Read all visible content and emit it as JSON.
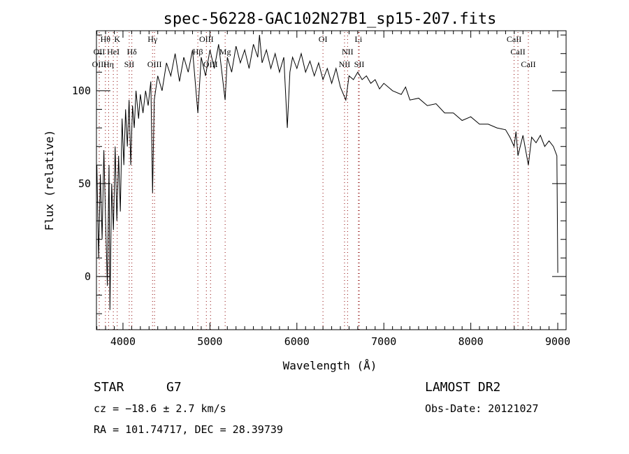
{
  "chart_data": {
    "type": "line",
    "title": "spec-56228-GAC102N27B1_sp15-207.fits",
    "xlabel": "Wavelength (Å)",
    "ylabel": "Flux (relative)",
    "xlim": [
      3695,
      9096
    ],
    "ylim": [
      -28.6,
      132.3
    ],
    "xticks": [
      4000,
      5000,
      6000,
      7000,
      8000,
      9000
    ],
    "yticks": [
      0,
      50,
      100
    ],
    "grid": false,
    "line_color": "#000000",
    "marker_line_color": "#8b0000",
    "lines": [
      {
        "label": "Hθ",
        "wave": 3798,
        "row": 0
      },
      {
        "label": "K",
        "wave": 3934,
        "row": 0
      },
      {
        "label": "Hγ",
        "wave": 4340,
        "row": 0
      },
      {
        "label": "OIII",
        "wave": 4959,
        "row": 0
      },
      {
        "label": "OI",
        "wave": 6300,
        "row": 0
      },
      {
        "label": "Li",
        "wave": 6708,
        "row": 0
      },
      {
        "label": "CaII",
        "wave": 8498,
        "row": 0
      },
      {
        "label": "OII",
        "wave": 3727,
        "row": 1
      },
      {
        "label": "HeI",
        "wave": 3889,
        "row": 1
      },
      {
        "label": "Hδ",
        "wave": 4102,
        "row": 1
      },
      {
        "label": "Hβ",
        "wave": 4861,
        "row": 1
      },
      {
        "label": "Mg",
        "wave": 5175,
        "row": 1
      },
      {
        "label": "NII",
        "wave": 6583,
        "row": 1
      },
      {
        "label": "CaII",
        "wave": 8542,
        "row": 1
      },
      {
        "label": "OIII",
        "wave": 3727,
        "row": 2
      },
      {
        "label": "Hη",
        "wave": 3835,
        "row": 2
      },
      {
        "label": "SII",
        "wave": 4072,
        "row": 2
      },
      {
        "label": "OIII",
        "wave": 4363,
        "row": 2
      },
      {
        "label": "OIII",
        "wave": 5007,
        "row": 2
      },
      {
        "label": "NII",
        "wave": 6548,
        "row": 2
      },
      {
        "label": "SII",
        "wave": 6717,
        "row": 2
      },
      {
        "label": "CaII",
        "wave": 8662,
        "row": 2
      }
    ],
    "x": [
      3700,
      3720,
      3740,
      3760,
      3780,
      3800,
      3820,
      3840,
      3850,
      3870,
      3890,
      3910,
      3930,
      3950,
      3970,
      3990,
      4010,
      4030,
      4050,
      4070,
      4090,
      4110,
      4130,
      4150,
      4180,
      4200,
      4230,
      4260,
      4290,
      4320,
      4340,
      4360,
      4400,
      4450,
      4500,
      4550,
      4600,
      4650,
      4700,
      4750,
      4800,
      4861,
      4900,
      4950,
      5000,
      5050,
      5100,
      5150,
      5175,
      5200,
      5250,
      5300,
      5350,
      5400,
      5450,
      5500,
      5550,
      5570,
      5600,
      5650,
      5700,
      5750,
      5800,
      5850,
      5890,
      5920,
      5950,
      6000,
      6050,
      6100,
      6150,
      6200,
      6250,
      6300,
      6350,
      6400,
      6450,
      6500,
      6563,
      6600,
      6650,
      6700,
      6750,
      6800,
      6850,
      6900,
      6950,
      7000,
      7100,
      7200,
      7250,
      7300,
      7400,
      7500,
      7600,
      7700,
      7800,
      7900,
      8000,
      8100,
      8200,
      8300,
      8400,
      8450,
      8498,
      8520,
      8542,
      8600,
      8662,
      8700,
      8750,
      8800,
      8850,
      8900,
      8950,
      8990,
      9000
    ],
    "y": [
      60,
      10,
      55,
      20,
      68,
      30,
      -5,
      60,
      -18,
      50,
      25,
      70,
      30,
      65,
      35,
      85,
      60,
      90,
      70,
      95,
      60,
      92,
      80,
      100,
      85,
      98,
      88,
      100,
      92,
      105,
      45,
      95,
      108,
      100,
      115,
      108,
      120,
      105,
      118,
      110,
      122,
      88,
      118,
      108,
      122,
      112,
      125,
      105,
      95,
      118,
      110,
      124,
      115,
      122,
      112,
      125,
      118,
      130,
      115,
      122,
      112,
      120,
      110,
      118,
      80,
      110,
      118,
      112,
      120,
      110,
      116,
      108,
      115,
      106,
      112,
      104,
      112,
      102,
      95,
      108,
      106,
      110,
      106,
      108,
      104,
      106,
      101,
      104,
      100,
      98,
      102,
      95,
      96,
      92,
      93,
      88,
      88,
      84,
      86,
      82,
      82,
      80,
      79,
      75,
      70,
      78,
      65,
      76,
      60,
      75,
      72,
      76,
      70,
      73,
      70,
      65,
      2
    ]
  },
  "info": {
    "object_type": "STAR",
    "subclass": "G7",
    "cz": "cz = −18.6 ± 2.7 km/s",
    "coords": "RA = 101.74717, DEC =  28.39739",
    "survey": "LAMOST DR2",
    "obs_date": "Obs-Date: 20121027"
  }
}
